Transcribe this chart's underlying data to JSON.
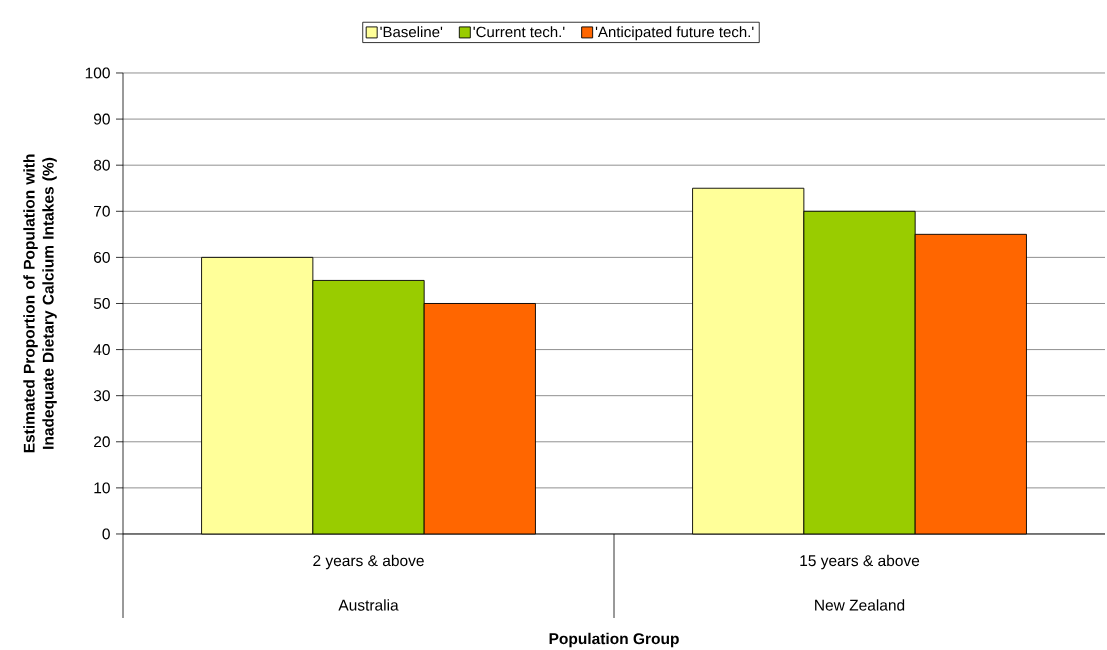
{
  "chart_data": {
    "type": "bar",
    "categories": [
      "2 years & above",
      "15 years & above"
    ],
    "annotations": [
      "Australia",
      "New Zealand"
    ],
    "xlabel": "Population Group",
    "ylabel": "Estimated Proportion of Population with Inadequate Dietary Calcium Intakes (%)",
    "series": [
      {
        "name": "'Baseline'",
        "color": "#ffff99",
        "values": [
          60,
          75
        ]
      },
      {
        "name": "'Current tech.'",
        "color": "#99cc00",
        "values": [
          55,
          70
        ]
      },
      {
        "name": "'Anticipated future tech.'",
        "color": "#ff6600",
        "values": [
          50,
          65
        ]
      }
    ],
    "ylim": [
      0,
      100
    ],
    "yticks": [
      0,
      10,
      20,
      30,
      40,
      50,
      60,
      70,
      80,
      90,
      100
    ],
    "grid": "y",
    "legend": "top"
  }
}
